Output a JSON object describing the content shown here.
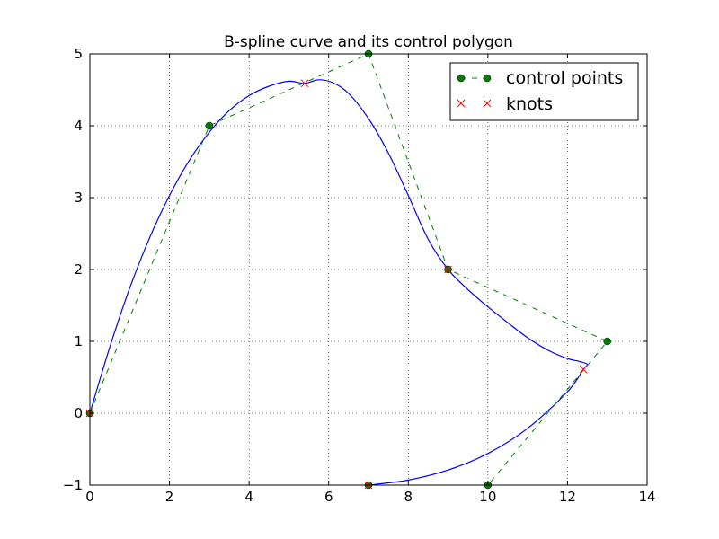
{
  "chart_data": {
    "type": "line",
    "title": "B-spline curve and its control polygon",
    "xlabel": "",
    "ylabel": "",
    "xlim": [
      0,
      14
    ],
    "ylim": [
      -1,
      5
    ],
    "x_ticks": [
      0,
      2,
      4,
      6,
      8,
      10,
      12,
      14
    ],
    "y_ticks": [
      -1,
      0,
      1,
      2,
      3,
      4,
      5
    ],
    "x_tick_labels": [
      "0",
      "2",
      "4",
      "6",
      "8",
      "10",
      "12",
      "14"
    ],
    "y_tick_labels": [
      "−1",
      "0",
      "1",
      "2",
      "3",
      "4",
      "5"
    ],
    "grid": true,
    "legend_position": "top-right",
    "series": [
      {
        "name": "control points",
        "style": "dashed line with circle markers",
        "color": "#007f00",
        "x": [
          0,
          3,
          7,
          9,
          13,
          10,
          7
        ],
        "y": [
          0,
          4,
          5,
          2,
          1,
          -1,
          -1
        ]
      },
      {
        "name": "knots",
        "style": "x markers",
        "color": "#ff0000",
        "x": [
          0,
          5.4,
          9.0,
          12.4,
          7.0
        ],
        "y": [
          0,
          4.59,
          2.0,
          0.61,
          -1.0
        ]
      },
      {
        "style": "solid line",
        "color": "#0000ff",
        "x": [
          0,
          0.5,
          1.0,
          1.5,
          2.0,
          2.5,
          3.0,
          3.5,
          4.0,
          4.5,
          5.0,
          5.4,
          5.75,
          6.1,
          6.5,
          7.0,
          7.5,
          8.0,
          8.5,
          9.0,
          9.5,
          10.0,
          10.5,
          11.0,
          11.5,
          12.0,
          12.3,
          12.5,
          12.4,
          12.0,
          11.0,
          10.0,
          9.0,
          8.0,
          7.0
        ],
        "y": [
          0,
          0.92,
          1.74,
          2.44,
          3.03,
          3.52,
          3.91,
          4.21,
          4.42,
          4.55,
          4.62,
          4.59,
          4.64,
          4.6,
          4.45,
          4.1,
          3.62,
          3.03,
          2.42,
          2.0,
          1.72,
          1.48,
          1.26,
          1.05,
          0.88,
          0.76,
          0.72,
          0.68,
          0.61,
          0.3,
          -0.21,
          -0.56,
          -0.79,
          -0.93,
          -1.0
        ]
      }
    ]
  }
}
